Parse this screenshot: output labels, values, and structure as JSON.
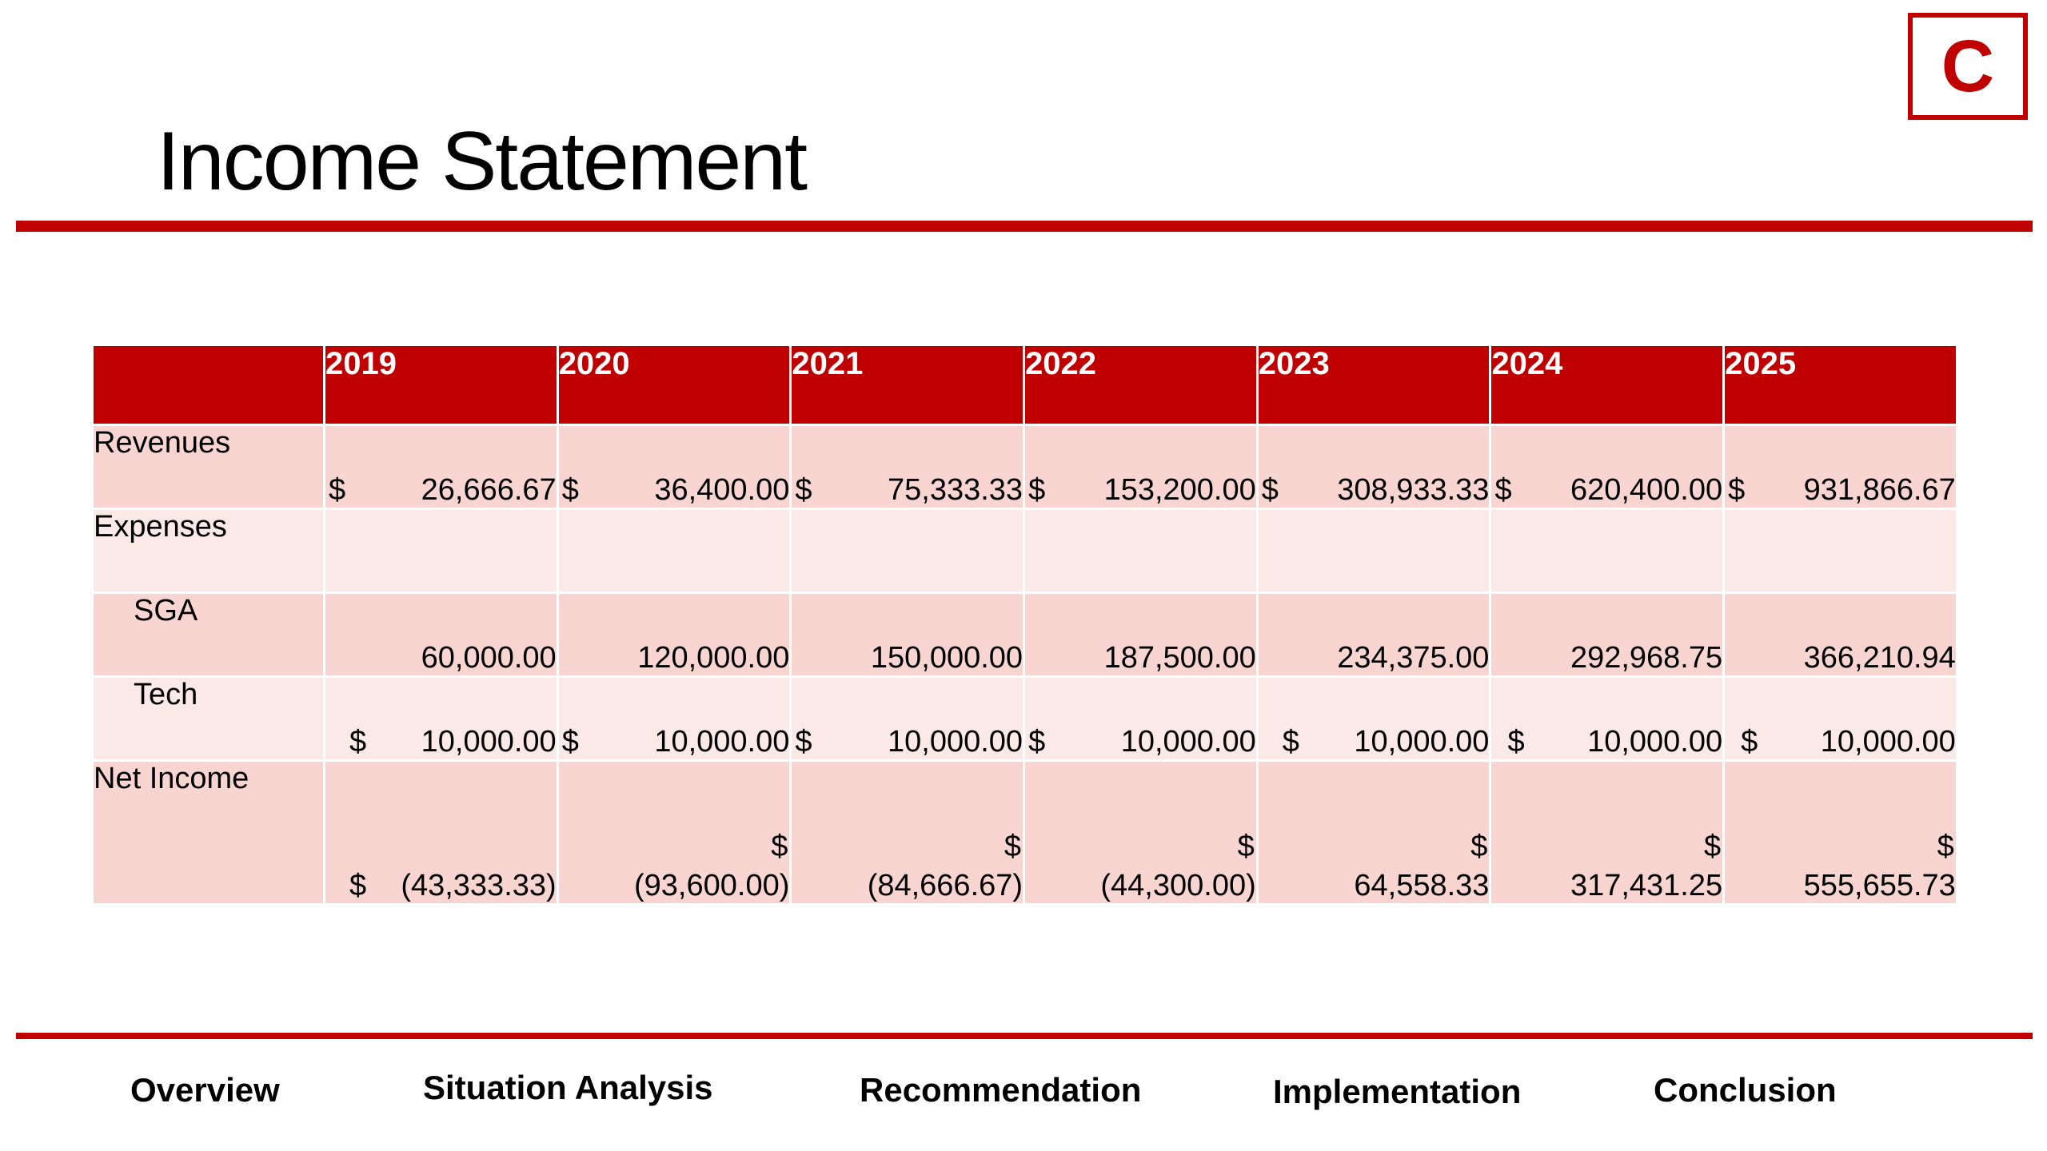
{
  "slide": {
    "title": "Income Statement",
    "logo_letter": "C",
    "brand_color": "#c00000"
  },
  "table": {
    "years": [
      "2019",
      "2020",
      "2021",
      "2022",
      "2023",
      "2024",
      "2025"
    ],
    "currency_symbol": "$",
    "rows": {
      "revenues": {
        "label": "Revenues",
        "values": [
          "26,666.67",
          "36,400.00",
          "75,333.33",
          "153,200.00",
          "308,933.33",
          "620,400.00",
          "931,866.67"
        ]
      },
      "expenses": {
        "label": "Expenses"
      },
      "sga": {
        "label": "SGA",
        "values": [
          "60,000.00",
          "120,000.00",
          "150,000.00",
          "187,500.00",
          "234,375.00",
          "292,968.75",
          "366,210.94"
        ]
      },
      "tech": {
        "label": "Tech",
        "values": [
          "10,000.00",
          "10,000.00",
          "10,000.00",
          "10,000.00",
          "10,000.00",
          "10,000.00",
          "10,000.00"
        ]
      },
      "net_income": {
        "label": "Net Income",
        "values": [
          "(43,333.33)",
          "(93,600.00)",
          "(84,666.67)",
          "(44,300.00)",
          "64,558.33",
          "317,431.25",
          "555,655.73"
        ]
      }
    }
  },
  "footer_nav": {
    "overview": "Overview",
    "situation_analysis": "Situation Analysis",
    "recommendation": "Recommendation",
    "implementation": "Implementation",
    "conclusion": "Conclusion"
  }
}
